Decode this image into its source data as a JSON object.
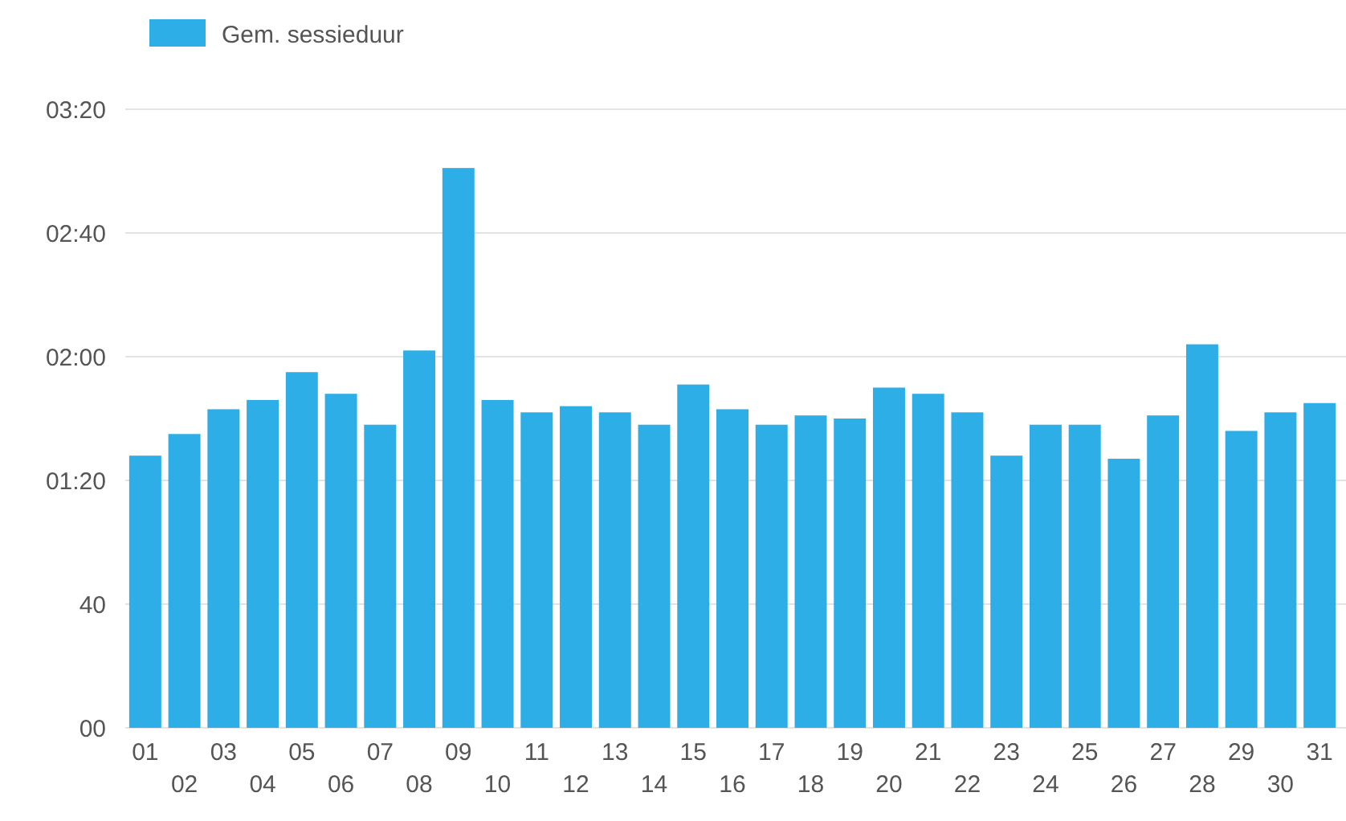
{
  "chart_data": {
    "type": "bar",
    "categories": [
      "01",
      "02",
      "03",
      "04",
      "05",
      "06",
      "07",
      "08",
      "09",
      "10",
      "11",
      "12",
      "13",
      "14",
      "15",
      "16",
      "17",
      "18",
      "19",
      "20",
      "21",
      "22",
      "23",
      "24",
      "25",
      "26",
      "27",
      "28",
      "29",
      "30",
      "31"
    ],
    "series": [
      {
        "name": "Gem. sessieduur",
        "color": "#2eaee6",
        "values": [
          88,
          95,
          103,
          106,
          115,
          108,
          98,
          122,
          181,
          106,
          102,
          104,
          102,
          98,
          111,
          103,
          98,
          101,
          100,
          110,
          108,
          102,
          88,
          98,
          98,
          87,
          101,
          124,
          96,
          102,
          105
        ]
      }
    ],
    "ylim": [
      0,
      200
    ],
    "yticks": [
      {
        "value": 0,
        "label": "00"
      },
      {
        "value": 40,
        "label": "40"
      },
      {
        "value": 80,
        "label": "01:20"
      },
      {
        "value": 120,
        "label": "02:00"
      },
      {
        "value": 160,
        "label": "02:40"
      },
      {
        "value": 200,
        "label": "03:20"
      }
    ],
    "grid": "y",
    "legend": "top left"
  }
}
